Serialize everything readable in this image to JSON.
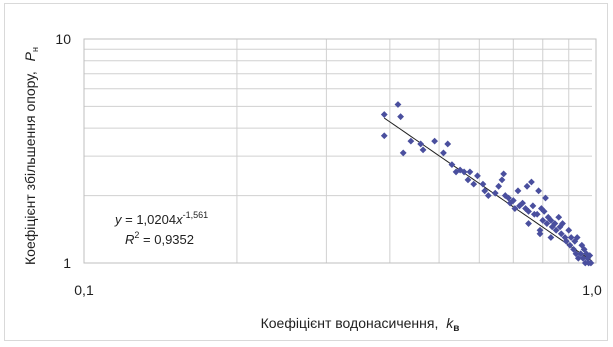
{
  "chart_data": {
    "type": "scatter",
    "x_scale": "log",
    "y_scale": "log",
    "xlim": [
      0.1,
      1.0
    ],
    "ylim": [
      1,
      10
    ],
    "grid": true,
    "legend": "none",
    "x_tick_labels": [
      "0,1",
      "1,0"
    ],
    "y_tick_labels": [
      "1",
      "10"
    ],
    "xlabel": "Коефіцієнт водонасичення,",
    "xlabel_var": "k",
    "xlabel_sub": "в",
    "ylabel": "Коефіцієнт збільшення опору,",
    "ylabel_var": "P",
    "ylabel_sub": "н",
    "marker_color": "#4a4f9e",
    "trendline_color": "#222222",
    "equation": {
      "y_var": "y",
      "rhs": " = 1,0204",
      "x_var": "x",
      "exponent": "-1,561",
      "r2_label": "R",
      "r2_sup": "2",
      "r2_rhs": " = 0,9352"
    },
    "trendline": {
      "type": "power",
      "a": 1.0204,
      "b": -1.561,
      "x_range": [
        0.39,
        1.0
      ]
    },
    "series": [
      {
        "points": [
          [
            0.39,
            4.6
          ],
          [
            0.39,
            3.7
          ],
          [
            0.415,
            5.1
          ],
          [
            0.42,
            4.5
          ],
          [
            0.425,
            3.1
          ],
          [
            0.44,
            3.5
          ],
          [
            0.46,
            3.4
          ],
          [
            0.465,
            3.2
          ],
          [
            0.49,
            3.5
          ],
          [
            0.51,
            3.1
          ],
          [
            0.52,
            3.4
          ],
          [
            0.53,
            2.75
          ],
          [
            0.54,
            2.55
          ],
          [
            0.55,
            2.6
          ],
          [
            0.56,
            2.55
          ],
          [
            0.57,
            2.35
          ],
          [
            0.575,
            2.55
          ],
          [
            0.585,
            2.25
          ],
          [
            0.595,
            2.45
          ],
          [
            0.61,
            2.25
          ],
          [
            0.615,
            2.1
          ],
          [
            0.625,
            2.0
          ],
          [
            0.645,
            2.05
          ],
          [
            0.655,
            2.2
          ],
          [
            0.665,
            2.35
          ],
          [
            0.67,
            2.5
          ],
          [
            0.675,
            2.0
          ],
          [
            0.685,
            1.95
          ],
          [
            0.69,
            1.85
          ],
          [
            0.7,
            1.9
          ],
          [
            0.705,
            1.75
          ],
          [
            0.715,
            2.1
          ],
          [
            0.72,
            1.8
          ],
          [
            0.73,
            1.85
          ],
          [
            0.74,
            1.75
          ],
          [
            0.745,
            2.2
          ],
          [
            0.75,
            1.7
          ],
          [
            0.76,
            2.3
          ],
          [
            0.765,
            1.8
          ],
          [
            0.77,
            1.65
          ],
          [
            0.78,
            1.65
          ],
          [
            0.785,
            2.1
          ],
          [
            0.79,
            1.4
          ],
          [
            0.795,
            1.75
          ],
          [
            0.8,
            1.55
          ],
          [
            0.805,
            1.7
          ],
          [
            0.81,
            1.95
          ],
          [
            0.815,
            1.5
          ],
          [
            0.82,
            1.6
          ],
          [
            0.83,
            1.55
          ],
          [
            0.835,
            1.45
          ],
          [
            0.845,
            1.5
          ],
          [
            0.85,
            1.4
          ],
          [
            0.86,
            1.6
          ],
          [
            0.865,
            1.45
          ],
          [
            0.87,
            1.35
          ],
          [
            0.875,
            1.5
          ],
          [
            0.885,
            1.3
          ],
          [
            0.89,
            1.25
          ],
          [
            0.9,
            1.4
          ],
          [
            0.905,
            1.2
          ],
          [
            0.91,
            1.3
          ],
          [
            0.92,
            1.15
          ],
          [
            0.925,
            1.25
          ],
          [
            0.93,
            1.1
          ],
          [
            0.935,
            1.3
          ],
          [
            0.94,
            1.05
          ],
          [
            0.95,
            1.1
          ],
          [
            0.955,
            1.2
          ],
          [
            0.96,
            1.05
          ],
          [
            0.965,
            1.15
          ],
          [
            0.97,
            1.0
          ],
          [
            0.975,
            1.1
          ],
          [
            0.98,
            1.05
          ],
          [
            0.985,
            1.0
          ],
          [
            0.99,
            1.08
          ],
          [
            0.995,
            1.0
          ],
          [
            0.75,
            1.5
          ],
          [
            0.79,
            1.35
          ],
          [
            0.83,
            1.3
          ]
        ]
      }
    ]
  }
}
